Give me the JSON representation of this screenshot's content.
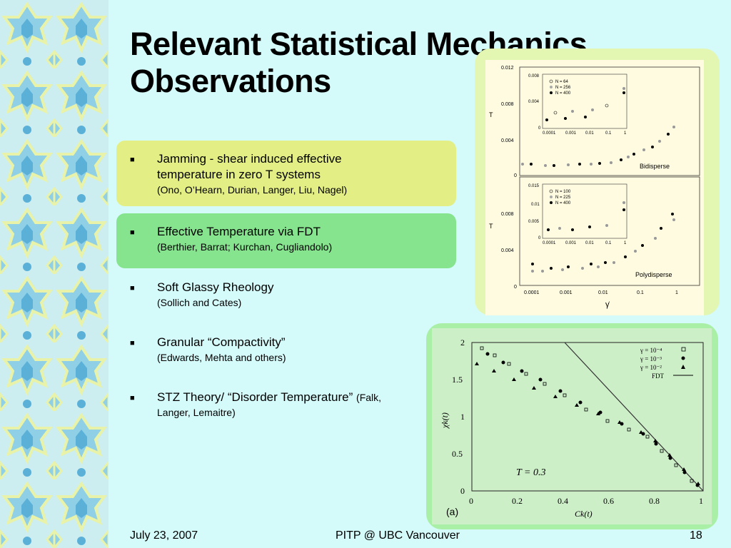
{
  "slide": {
    "title_line1": "Relevant Statistical Mechanics",
    "title_line2": "Observations"
  },
  "bullets": [
    {
      "line1": "Jamming - shear induced effective",
      "line2": "temperature in zero T systems",
      "sub": "(Ono, O’Hearn, Durian, Langer, Liu, Nagel)"
    },
    {
      "line1": "Effective Temperature via FDT",
      "sub": "(Berthier, Barrat; Kurchan, Cugliandolo)"
    },
    {
      "line1": "Soft Glassy Rheology",
      "sub": "(Sollich and Cates)"
    },
    {
      "line1": "Granular “Compactivity”",
      "sub": "(Edwards, Mehta and others)"
    },
    {
      "line1": "STZ Theory/ “Disorder Temperature”",
      "inline_sub": "(Falk,",
      "line2": "Langer, Lemaitre)"
    }
  ],
  "footer": {
    "date": "July 23, 2007",
    "venue": "PITP @ UBC Vancouver",
    "page": "18"
  },
  "figure_top": {
    "panel1": {
      "ylabel": "T",
      "yticks": [
        "0.012",
        "0.008",
        "0.004",
        "0"
      ],
      "inset_yticks": [
        "0.008",
        "0.004",
        "0"
      ],
      "inset_xticks": [
        "0.0001",
        "0.001",
        "0.01",
        "0.1",
        "1"
      ],
      "legend": [
        "N = 64",
        "N = 256",
        "N = 400"
      ],
      "label": "Bidisperse"
    },
    "panel2": {
      "ylabel": "T",
      "yticks": [
        "0.008",
        "0.004",
        "0"
      ],
      "inset_yticks": [
        "0.015",
        "0.01",
        "0.005",
        "0"
      ],
      "inset_xticks": [
        "0.0001",
        "0.001",
        "0.01",
        "0.1",
        "1"
      ],
      "legend": [
        "N = 100",
        "N = 225",
        "N = 400"
      ],
      "label": "Polydisperse"
    },
    "xticks": [
      "0.0001",
      "0.001",
      "0.01",
      "0.1",
      "1"
    ],
    "xlabel": "γ̇"
  },
  "figure_bottom": {
    "yticks": [
      "2",
      "1.5",
      "1",
      "0.5",
      "0"
    ],
    "xticks": [
      "0",
      "0.2",
      "0.4",
      "0.6",
      "0.8",
      "1"
    ],
    "ylabel": "χk(t)",
    "xlabel": "Ck(t)",
    "annotation": "T = 0.3",
    "panel_label": "(a)",
    "legend": [
      "γ = 10⁻⁴",
      "γ = 10⁻³",
      "γ = 10⁻²",
      "FDT"
    ]
  },
  "colors": {
    "background": "#d4fafa",
    "yellow_box": "#e3ef84",
    "green_box": "#86e38e"
  }
}
